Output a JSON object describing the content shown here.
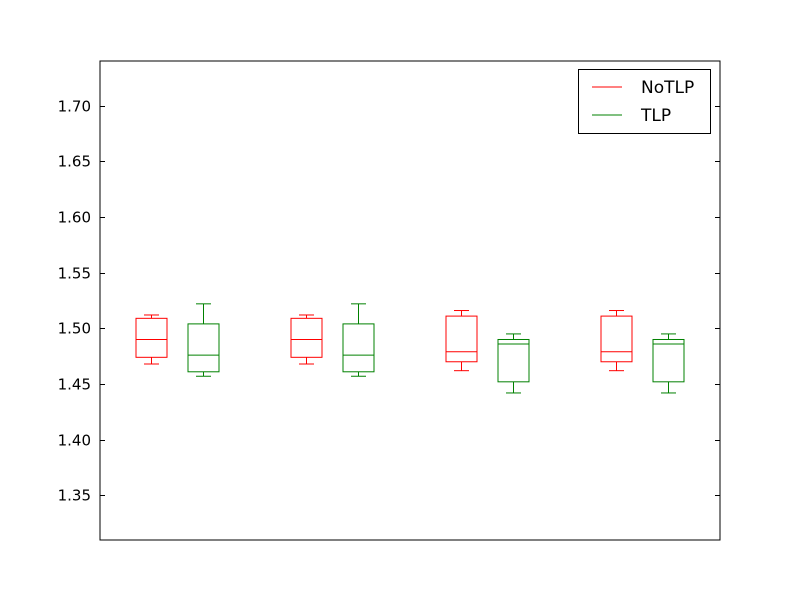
{
  "chart_data": {
    "type": "box",
    "title": "",
    "xlabel": "",
    "ylabel": "",
    "ylim": [
      1.31,
      1.74
    ],
    "yticks": [
      1.35,
      1.4,
      1.45,
      1.5,
      1.55,
      1.6,
      1.65,
      1.7
    ],
    "ytick_labels": [
      "1.35",
      "1.40",
      "1.45",
      "1.50",
      "1.55",
      "1.60",
      "1.65",
      "1.70"
    ],
    "show_xticks": false,
    "grid": false,
    "legend": {
      "placement": "top-right",
      "entries": [
        {
          "label": "NoTLP",
          "color": "#ff0000"
        },
        {
          "label": "TLP",
          "color": "#008000"
        }
      ]
    },
    "series": [
      {
        "name": "NoTLP",
        "color": "#ff0000",
        "boxes": [
          {
            "whisker_low": 1.468,
            "q1": 1.474,
            "median": 1.49,
            "q3": 1.509,
            "whisker_high": 1.512
          },
          {
            "whisker_low": 1.468,
            "q1": 1.474,
            "median": 1.49,
            "q3": 1.509,
            "whisker_high": 1.512
          },
          {
            "whisker_low": 1.462,
            "q1": 1.47,
            "median": 1.479,
            "q3": 1.511,
            "whisker_high": 1.516
          },
          {
            "whisker_low": 1.462,
            "q1": 1.47,
            "median": 1.479,
            "q3": 1.511,
            "whisker_high": 1.516
          }
        ]
      },
      {
        "name": "TLP",
        "color": "#008000",
        "boxes": [
          {
            "whisker_low": 1.457,
            "q1": 1.461,
            "median": 1.476,
            "q3": 1.504,
            "whisker_high": 1.522
          },
          {
            "whisker_low": 1.457,
            "q1": 1.461,
            "median": 1.476,
            "q3": 1.504,
            "whisker_high": 1.522
          },
          {
            "whisker_low": 1.442,
            "q1": 1.452,
            "median": 1.486,
            "q3": 1.49,
            "whisker_high": 1.495
          },
          {
            "whisker_low": 1.442,
            "q1": 1.452,
            "median": 1.486,
            "q3": 1.49,
            "whisker_high": 1.495
          }
        ]
      }
    ]
  }
}
